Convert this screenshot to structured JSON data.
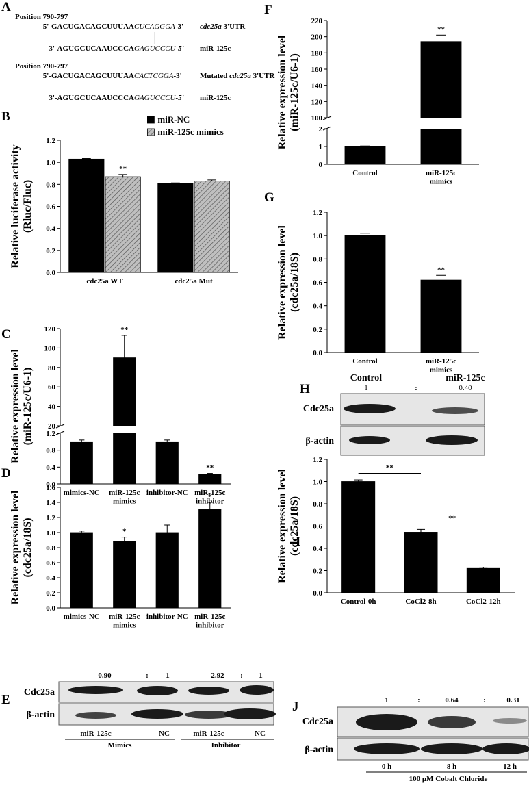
{
  "panel_labels": [
    "A",
    "B",
    "C",
    "D",
    "E",
    "F",
    "G",
    "H",
    "I",
    "J"
  ],
  "sequences": {
    "wild_type": {
      "position": "Position 790-797",
      "target_5p": "5'-GACUGACAGCUUUAA",
      "target_site": "CUCAGGGA",
      "target_3p": "-3'",
      "target_name_prefix": "",
      "target_name_italic": "cdc25a",
      "target_name_suffix": " 3'UTR",
      "mirna_5p": "3'-AGUGCUCAAUCCCA",
      "mirna_site": "GAGUCCCU",
      "mirna_3p": "-5'",
      "mirna_name": "miR-125c"
    },
    "mutated": {
      "position": "Position 790-797",
      "target_5p": "5'-GACUGACAGCUUUAA",
      "target_site": "CACTCGGA",
      "target_3p": "-3'",
      "target_name_prefix": "Mutated ",
      "target_name_italic": "cdc25a",
      "target_name_suffix": " 3'UTR",
      "mirna_5p": "3'-AGUGCUCAAUCCCA",
      "mirna_site": "GAGUCCCU",
      "mirna_3p": "-5'",
      "mirna_name": "miR-125c"
    }
  },
  "chart_data": [
    {
      "type": "bar",
      "ylabel": "Relative luciferase activity\n(Rluc/Fluc)",
      "categories": [
        "cdc25a WT",
        "cdc25a Mut"
      ],
      "series": [
        {
          "name": "miR-NC",
          "color": "#000000",
          "values": [
            1.03,
            0.81
          ],
          "errors": [
            0.005,
            0.003
          ]
        },
        {
          "name": "miR-125c mimics",
          "color": "#bfbfbf",
          "pattern": "hatch",
          "values": [
            0.87,
            0.83
          ],
          "errors": [
            0.02,
            0.01
          ],
          "sig": [
            "**",
            null
          ]
        }
      ],
      "ylim": [
        0,
        1.2
      ],
      "yticks": [
        {
          "value": 0,
          "label": "0.0"
        },
        0.2,
        0.4,
        0.6,
        0.8,
        {
          "value": 1,
          "label": "1.0"
        },
        1.2
      ],
      "legend": "top"
    },
    {
      "type": "bar",
      "ylabel": "Relative expression level\n(miR-125c/U6-1)",
      "categories": [
        "mimics-NC",
        "miR-125c\nmimics",
        "inhibitor-NC",
        "miR-125c\ninhibitor"
      ],
      "series": [
        {
          "color": "#000000",
          "values": [
            1.0,
            90,
            1.0,
            0.23
          ],
          "errors": [
            0.04,
            23,
            0.04,
            0.02
          ],
          "sig": [
            null,
            "**",
            null,
            "**"
          ]
        }
      ],
      "ylim": [
        0,
        120
      ],
      "axis_break": [
        1.2,
        20
      ],
      "yticks": [
        {
          "value": 0,
          "label": "0.0"
        },
        0.4,
        0.8,
        1.2,
        20,
        40,
        60,
        80,
        100,
        120
      ]
    },
    {
      "type": "bar",
      "ylabel": "Relative expression level\n(cdc25a/18S)",
      "categories": [
        "mimics-NC",
        "miR-125c\nmimics",
        "inhibitor-NC",
        "miR-125c\ninhibitor"
      ],
      "series": [
        {
          "color": "#000000",
          "values": [
            1.0,
            0.88,
            1.0,
            1.31
          ],
          "errors": [
            0.02,
            0.06,
            0.1,
            0.09
          ],
          "sig": [
            null,
            "*",
            null,
            "*"
          ]
        }
      ],
      "ylim": [
        0,
        1.6
      ],
      "yticks": [
        {
          "value": 0,
          "label": "0.0"
        },
        0.2,
        0.4,
        0.6,
        0.8,
        {
          "value": 1,
          "label": "1.0"
        },
        1.2,
        1.4,
        1.6
      ]
    },
    {
      "type": "bar",
      "ylabel": "Relative expression level\n(miR-125c/U6-1)",
      "categories": [
        "Control",
        "miR-125c\nmimics"
      ],
      "series": [
        {
          "color": "#000000",
          "values": [
            1.0,
            194
          ],
          "errors": [
            0.03,
            8
          ],
          "sig": [
            null,
            "**"
          ]
        }
      ],
      "ylim": [
        0,
        220
      ],
      "axis_break": [
        2,
        100
      ],
      "yticks": [
        0,
        1,
        2,
        100,
        120,
        140,
        160,
        180,
        200,
        220
      ]
    },
    {
      "type": "bar",
      "ylabel": "Relative expression level\n(cdc25a/18S)",
      "categories": [
        "Control",
        "miR-125c\nmimics"
      ],
      "series": [
        {
          "color": "#000000",
          "values": [
            1.0,
            0.62
          ],
          "errors": [
            0.02,
            0.04
          ],
          "sig": [
            null,
            "**"
          ]
        }
      ],
      "ylim": [
        0,
        1.2
      ],
      "yticks": [
        {
          "value": 0,
          "label": "0.0"
        },
        0.2,
        0.4,
        0.6,
        0.8,
        {
          "value": 1,
          "label": "1.0"
        },
        1.2
      ]
    },
    {
      "type": "bar",
      "ylabel": "Relative expression level\n(cdc25a/18S)",
      "categories": [
        "Control-0h",
        "CoCl2-8h",
        "CoCl2-12h"
      ],
      "series": [
        {
          "color": "#000000",
          "values": [
            1.0,
            0.545,
            0.22
          ],
          "errors": [
            0.015,
            0.025,
            0.01
          ]
        }
      ],
      "brackets": [
        {
          "from": "Control-0h",
          "to": "CoCl2-8h",
          "label": "**"
        },
        {
          "from": "CoCl2-8h",
          "to": "CoCl2-12h",
          "label": "**"
        }
      ],
      "ylim": [
        0,
        1.2
      ],
      "yticks": [
        {
          "value": 0,
          "label": "0.0"
        },
        0.2,
        0.4,
        0.6,
        0.8,
        {
          "value": 1,
          "label": "1.0"
        },
        1.2
      ]
    }
  ],
  "blot_E": {
    "ratios": [
      "0.90",
      ":",
      "1",
      "2.92",
      ":",
      "1"
    ],
    "rows": [
      "Cdc25a",
      "β-actin"
    ],
    "lanes": [
      "miR-125c",
      "NC",
      "miR-125c",
      "NC"
    ],
    "groups": [
      "Mimics",
      "Inhibitor"
    ]
  },
  "blot_H": {
    "lanes": [
      "Control",
      "miR-125c"
    ],
    "ratios": [
      "1",
      ":",
      "0.40"
    ],
    "rows": [
      "Cdc25a",
      "β-actin"
    ]
  },
  "blot_J": {
    "ratios": [
      "1",
      ":",
      "0.64",
      ":",
      "0.31"
    ],
    "rows": [
      "Cdc25a",
      "β-actin"
    ],
    "lanes": [
      "0 h",
      "8 h",
      "12 h"
    ],
    "treatment": "100 μM Cobalt Chloride"
  }
}
